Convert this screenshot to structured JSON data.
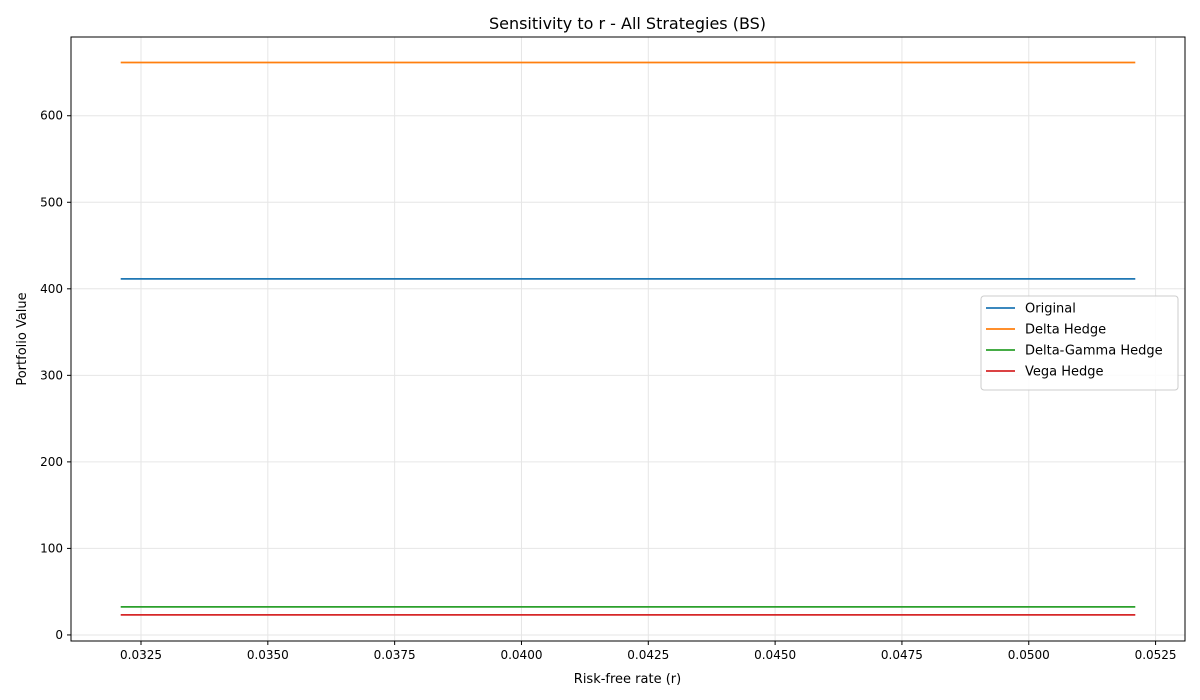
{
  "chart_data": {
    "type": "line",
    "title": "Sensitivity to r - All Strategies (BS)",
    "xlabel": "Risk-free rate (r)",
    "ylabel": "Portfolio Value",
    "xlim": [
      0.03112,
      0.05308
    ],
    "ylim": [
      -7,
      691
    ],
    "x": [
      0.0321,
      0.0521
    ],
    "xticks": [
      0.0325,
      0.035,
      0.0375,
      0.04,
      0.0425,
      0.045,
      0.0475,
      0.05,
      0.0525
    ],
    "xtick_labels": [
      "0.0325",
      "0.0350",
      "0.0375",
      "0.0400",
      "0.0425",
      "0.0450",
      "0.0475",
      "0.0500",
      "0.0525"
    ],
    "yticks": [
      0,
      100,
      200,
      300,
      400,
      500,
      600
    ],
    "ytick_labels": [
      "0",
      "100",
      "200",
      "300",
      "400",
      "500",
      "600"
    ],
    "grid": true,
    "legend_position": "center-right",
    "series": [
      {
        "name": "Original",
        "color": "#1f77b4",
        "values": [
          411.5,
          411.5
        ]
      },
      {
        "name": "Delta Hedge",
        "color": "#ff7f0e",
        "values": [
          661.5,
          661.5
        ]
      },
      {
        "name": "Delta-Gamma Hedge",
        "color": "#2ca02c",
        "values": [
          32.4,
          32.4
        ]
      },
      {
        "name": "Vega Hedge",
        "color": "#d62728",
        "values": [
          23.2,
          23.2
        ]
      }
    ]
  }
}
